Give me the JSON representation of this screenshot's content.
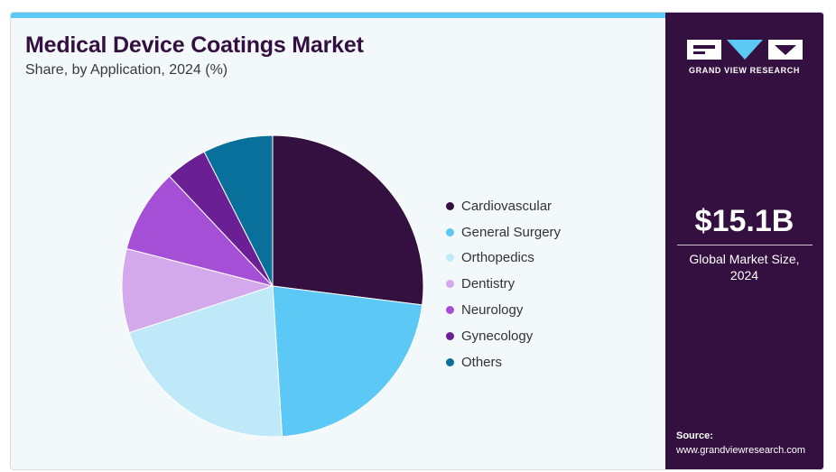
{
  "header": {
    "title": "Medical Device Coatings Market",
    "subtitle": "Share, by Application, 2024 (%)"
  },
  "chart_data": {
    "type": "pie",
    "categories": [
      "Cardiovascular",
      "General Surgery",
      "Orthopedics",
      "Dentistry",
      "Neurology",
      "Gynecology",
      "Others"
    ],
    "values": [
      27.0,
      22.0,
      21.0,
      9.0,
      9.0,
      4.5,
      7.5
    ],
    "colors": [
      "#33103f",
      "#5cc8f5",
      "#bfe9f9",
      "#d4a9eb",
      "#a54fd6",
      "#6b1f95",
      "#08709a"
    ],
    "start_angle_deg": 0,
    "direction": "clockwise",
    "legend_position": "right"
  },
  "sidebar": {
    "brand": "GRAND VIEW RESEARCH",
    "market_size_value": "$15.1B",
    "market_size_label": "Global Market Size,\n2024",
    "source_label": "Source:",
    "source_url": "www.grandviewresearch.com"
  }
}
